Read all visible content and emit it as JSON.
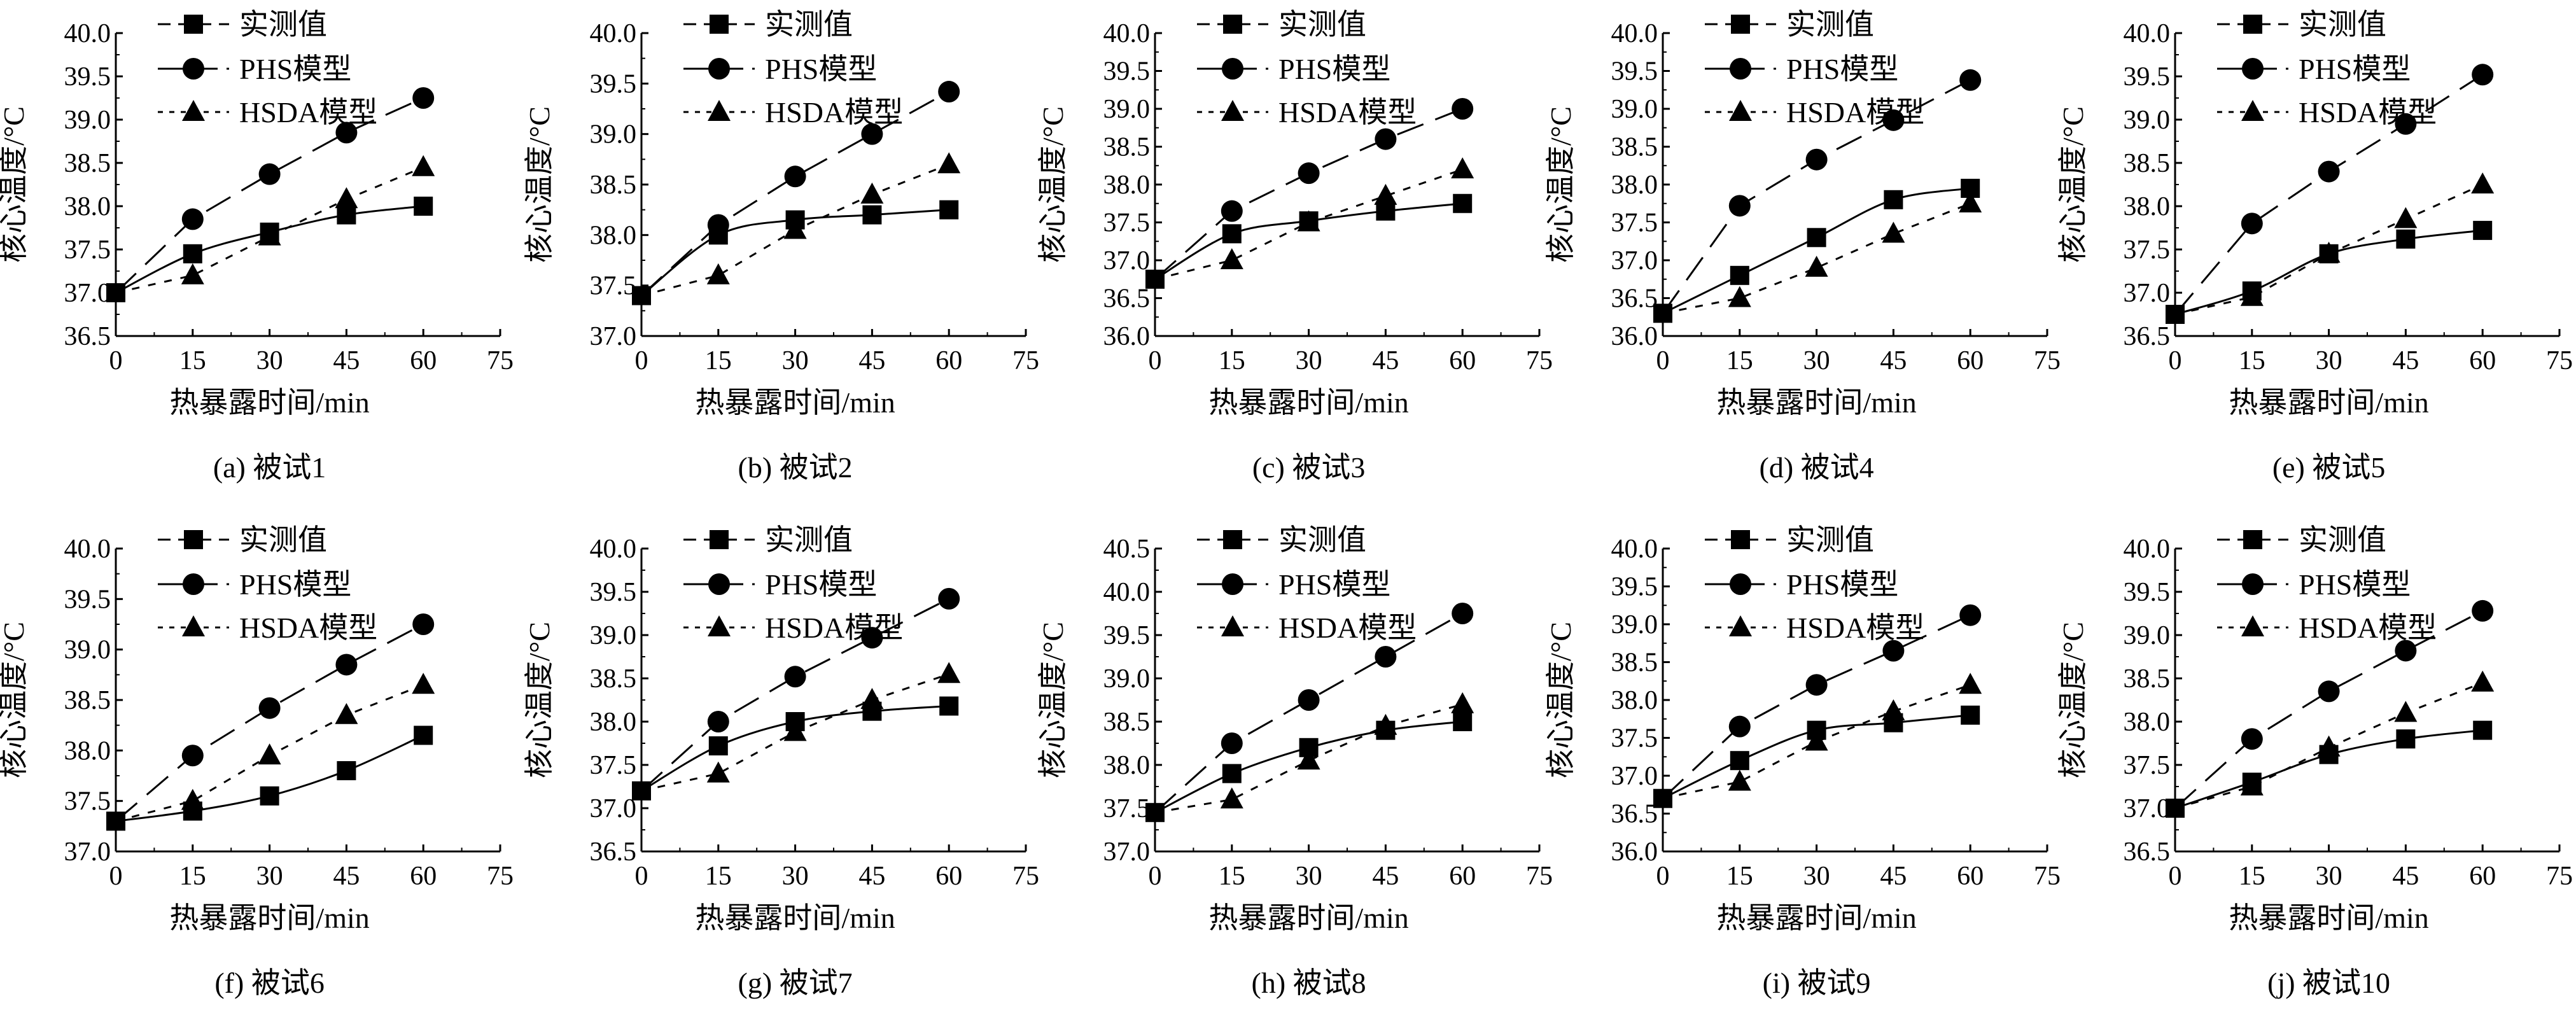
{
  "legend": {
    "measured": "实测值",
    "phs": "PHS模型",
    "hsda": "HSDA模型"
  },
  "axis_labels": {
    "x": "热暴露时间/min",
    "y": "核心温度/°C"
  },
  "chart_data": [
    {
      "type": "line",
      "caption": "(a) 被试1",
      "xlabel": "热暴露时间/min",
      "ylabel": "核心温度/°C",
      "x_ticks": [
        0,
        15,
        30,
        45,
        60,
        75
      ],
      "xlim": [
        0,
        75
      ],
      "ylim": [
        36.5,
        40.0
      ],
      "y_ticks": [
        "36.5",
        "37.0",
        "37.5",
        "38.0",
        "38.5",
        "39.0",
        "39.5",
        "40.0"
      ],
      "x": [
        0,
        15,
        30,
        45,
        60
      ],
      "series": [
        {
          "name": "实测值",
          "marker": "square",
          "values": [
            37.0,
            37.45,
            37.7,
            37.9,
            38.0
          ]
        },
        {
          "name": "PHS模型",
          "marker": "circle",
          "values": [
            37.0,
            37.85,
            38.37,
            38.85,
            39.25
          ]
        },
        {
          "name": "HSDA模型",
          "marker": "triangle",
          "values": [
            37.0,
            37.2,
            37.65,
            38.08,
            38.45
          ]
        }
      ]
    },
    {
      "type": "line",
      "caption": "(b) 被试2",
      "xlabel": "热暴露时间/min",
      "ylabel": "核心温度/°C",
      "x_ticks": [
        0,
        15,
        30,
        45,
        60,
        75
      ],
      "xlim": [
        0,
        75
      ],
      "ylim": [
        37.0,
        40.0
      ],
      "y_ticks": [
        "37.0",
        "37.5",
        "38.0",
        "38.5",
        "39.0",
        "39.5",
        "40.0"
      ],
      "x": [
        0,
        15,
        30,
        45,
        60
      ],
      "series": [
        {
          "name": "实测值",
          "marker": "square",
          "values": [
            37.4,
            38.0,
            38.15,
            38.2,
            38.25
          ]
        },
        {
          "name": "PHS模型",
          "marker": "circle",
          "values": [
            37.4,
            38.1,
            38.58,
            39.0,
            39.42
          ]
        },
        {
          "name": "HSDA模型",
          "marker": "triangle",
          "values": [
            37.4,
            37.6,
            38.05,
            38.4,
            38.7
          ]
        }
      ]
    },
    {
      "type": "line",
      "caption": "(c) 被试3",
      "xlabel": "热暴露时间/min",
      "ylabel": "核心温度/°C",
      "x_ticks": [
        0,
        15,
        30,
        45,
        60,
        75
      ],
      "xlim": [
        0,
        75
      ],
      "ylim": [
        36.0,
        40.0
      ],
      "y_ticks": [
        "36.0",
        "36.5",
        "37.0",
        "37.5",
        "38.0",
        "38.5",
        "39.0",
        "39.5",
        "40.0"
      ],
      "x": [
        0,
        15,
        30,
        45,
        60
      ],
      "series": [
        {
          "name": "实测值",
          "marker": "square",
          "values": [
            36.75,
            37.35,
            37.52,
            37.65,
            37.75
          ]
        },
        {
          "name": "PHS模型",
          "marker": "circle",
          "values": [
            36.75,
            37.65,
            38.15,
            38.6,
            39.0
          ]
        },
        {
          "name": "HSDA模型",
          "marker": "triangle",
          "values": [
            36.75,
            37.0,
            37.5,
            37.85,
            38.2
          ]
        }
      ]
    },
    {
      "type": "line",
      "caption": "(d) 被试4",
      "xlabel": "热暴露时间/min",
      "ylabel": "核心温度/°C",
      "x_ticks": [
        0,
        15,
        30,
        45,
        60,
        75
      ],
      "xlim": [
        0,
        75
      ],
      "ylim": [
        36.0,
        40.0
      ],
      "y_ticks": [
        "36.0",
        "36.5",
        "37.0",
        "37.5",
        "38.0",
        "38.5",
        "39.0",
        "39.5",
        "40.0"
      ],
      "x": [
        0,
        15,
        30,
        45,
        60
      ],
      "series": [
        {
          "name": "实测值",
          "marker": "square",
          "values": [
            36.3,
            36.8,
            37.3,
            37.8,
            37.95
          ]
        },
        {
          "name": "PHS模型",
          "marker": "circle",
          "values": [
            36.3,
            37.72,
            38.33,
            38.85,
            39.38
          ]
        },
        {
          "name": "HSDA模型",
          "marker": "triangle",
          "values": [
            36.3,
            36.5,
            36.9,
            37.35,
            37.75
          ]
        }
      ]
    },
    {
      "type": "line",
      "caption": "(e) 被试5",
      "xlabel": "热暴露时间/min",
      "ylabel": "核心温度/°C",
      "x_ticks": [
        0,
        15,
        30,
        45,
        60,
        75
      ],
      "xlim": [
        0,
        75
      ],
      "ylim": [
        36.5,
        40.0
      ],
      "y_ticks": [
        "36.5",
        "37.0",
        "37.5",
        "38.0",
        "38.5",
        "39.0",
        "39.5",
        "40.0"
      ],
      "x": [
        0,
        15,
        30,
        45,
        60
      ],
      "series": [
        {
          "name": "实测值",
          "marker": "square",
          "values": [
            36.75,
            37.02,
            37.45,
            37.62,
            37.72
          ]
        },
        {
          "name": "PHS模型",
          "marker": "circle",
          "values": [
            36.75,
            37.8,
            38.4,
            38.95,
            39.52
          ]
        },
        {
          "name": "HSDA模型",
          "marker": "triangle",
          "values": [
            36.75,
            36.95,
            37.45,
            37.85,
            38.25
          ]
        }
      ]
    },
    {
      "type": "line",
      "caption": "(f) 被试6",
      "xlabel": "热暴露时间/min",
      "ylabel": "核心温度/°C",
      "x_ticks": [
        0,
        15,
        30,
        45,
        60,
        75
      ],
      "xlim": [
        0,
        75
      ],
      "ylim": [
        37.0,
        40.0
      ],
      "y_ticks": [
        "37.0",
        "37.5",
        "38.0",
        "38.5",
        "39.0",
        "39.5",
        "40.0"
      ],
      "x": [
        0,
        15,
        30,
        45,
        60
      ],
      "series": [
        {
          "name": "实测值",
          "marker": "square",
          "values": [
            37.3,
            37.4,
            37.55,
            37.8,
            38.15
          ]
        },
        {
          "name": "PHS模型",
          "marker": "circle",
          "values": [
            37.3,
            37.95,
            38.42,
            38.85,
            39.25
          ]
        },
        {
          "name": "HSDA模型",
          "marker": "triangle",
          "values": [
            37.3,
            37.5,
            37.95,
            38.35,
            38.65
          ]
        }
      ]
    },
    {
      "type": "line",
      "caption": "(g) 被试7",
      "xlabel": "热暴露时间/min",
      "ylabel": "核心温度/°C",
      "x_ticks": [
        0,
        15,
        30,
        45,
        60,
        75
      ],
      "xlim": [
        0,
        75
      ],
      "ylim": [
        36.5,
        40.0
      ],
      "y_ticks": [
        "36.5",
        "37.0",
        "37.5",
        "38.0",
        "38.5",
        "39.0",
        "39.5",
        "40.0"
      ],
      "x": [
        0,
        15,
        30,
        45,
        60
      ],
      "series": [
        {
          "name": "实测值",
          "marker": "square",
          "values": [
            37.2,
            37.72,
            38.0,
            38.12,
            38.18
          ]
        },
        {
          "name": "PHS模型",
          "marker": "circle",
          "values": [
            37.2,
            38.0,
            38.52,
            38.97,
            39.42
          ]
        },
        {
          "name": "HSDA模型",
          "marker": "triangle",
          "values": [
            37.2,
            37.4,
            37.88,
            38.25,
            38.55
          ]
        }
      ]
    },
    {
      "type": "line",
      "caption": "(h) 被试8",
      "xlabel": "热暴露时间/min",
      "ylabel": "核心温度/°C",
      "x_ticks": [
        0,
        15,
        30,
        45,
        60,
        75
      ],
      "xlim": [
        0,
        75
      ],
      "ylim": [
        37.0,
        40.5
      ],
      "y_ticks": [
        "37.0",
        "37.5",
        "38.0",
        "38.5",
        "39.0",
        "39.5",
        "40.0",
        "40.5"
      ],
      "x": [
        0,
        15,
        30,
        45,
        60
      ],
      "series": [
        {
          "name": "实测值",
          "marker": "square",
          "values": [
            37.45,
            37.9,
            38.2,
            38.4,
            38.5
          ]
        },
        {
          "name": "PHS模型",
          "marker": "circle",
          "values": [
            37.45,
            38.25,
            38.75,
            39.25,
            39.75
          ]
        },
        {
          "name": "HSDA模型",
          "marker": "triangle",
          "values": [
            37.45,
            37.6,
            38.05,
            38.45,
            38.7
          ]
        }
      ]
    },
    {
      "type": "line",
      "caption": "(i) 被试9",
      "xlabel": "热暴露时间/min",
      "ylabel": "核心温度/°C",
      "x_ticks": [
        0,
        15,
        30,
        45,
        60,
        75
      ],
      "xlim": [
        0,
        75
      ],
      "ylim": [
        36.0,
        40.0
      ],
      "y_ticks": [
        "36.0",
        "36.5",
        "37.0",
        "37.5",
        "38.0",
        "38.5",
        "39.0",
        "39.5",
        "40.0"
      ],
      "x": [
        0,
        15,
        30,
        45,
        60
      ],
      "series": [
        {
          "name": "实测值",
          "marker": "square",
          "values": [
            36.7,
            37.2,
            37.6,
            37.7,
            37.8
          ]
        },
        {
          "name": "PHS模型",
          "marker": "circle",
          "values": [
            36.7,
            37.65,
            38.2,
            38.65,
            39.12
          ]
        },
        {
          "name": "HSDA模型",
          "marker": "triangle",
          "values": [
            36.7,
            36.92,
            37.45,
            37.85,
            38.2
          ]
        }
      ]
    },
    {
      "type": "line",
      "caption": "(j) 被试10",
      "xlabel": "热暴露时间/min",
      "ylabel": "核心温度/°C",
      "x_ticks": [
        0,
        15,
        30,
        45,
        60,
        75
      ],
      "xlim": [
        0,
        75
      ],
      "ylim": [
        36.5,
        40.0
      ],
      "y_ticks": [
        "36.5",
        "37.0",
        "37.5",
        "38.0",
        "38.5",
        "39.0",
        "39.5",
        "40.0"
      ],
      "x": [
        0,
        15,
        30,
        45,
        60
      ],
      "series": [
        {
          "name": "实测值",
          "marker": "square",
          "values": [
            37.0,
            37.3,
            37.62,
            37.8,
            37.9
          ]
        },
        {
          "name": "PHS模型",
          "marker": "circle",
          "values": [
            37.0,
            37.8,
            38.35,
            38.82,
            39.28
          ]
        },
        {
          "name": "HSDA模型",
          "marker": "triangle",
          "values": [
            37.0,
            37.25,
            37.7,
            38.1,
            38.45
          ]
        }
      ]
    }
  ]
}
